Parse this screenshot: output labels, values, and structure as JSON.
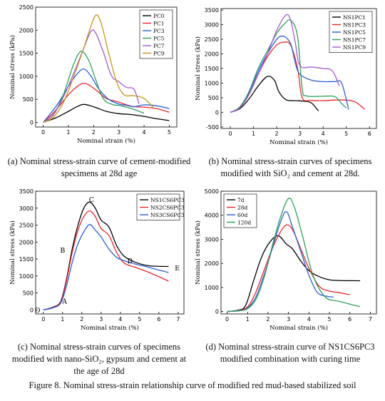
{
  "figure_caption": "Figure 8. Nominal stress-strain relationship curve of modified red mud-based stabilized soil",
  "captions": {
    "a": "(a) Nominal stress-strain curve of cement-modified specimens at 28d age",
    "b": "(b) Nominal stress-strain curves of specimens modified with SiO₂ and cement at 28d.",
    "c": "(c) Nominal stress-strain curves of specimens modified with nano-SiO₂, gypsum and cement at the age of 28d",
    "d": "(d) Nominal stress-strain curve of NS1CS6PC3 modified combination with curing time"
  },
  "chart_data": [
    {
      "id": "a",
      "type": "line",
      "xlabel": "Nominal strain (%)",
      "ylabel": "Nominal stress (kPa)",
      "xlim": [
        -0.3,
        5.3
      ],
      "ylim": [
        -100,
        2500
      ],
      "xticks": [
        0,
        1,
        2,
        3,
        4,
        5
      ],
      "yticks": [
        0,
        500,
        1000,
        1500,
        2000,
        2500
      ],
      "legend": "top-right",
      "series": [
        {
          "name": "PC0",
          "color": "#000000",
          "x": [
            0,
            0.5,
            1,
            1.3,
            1.6,
            2.0,
            2.5,
            3,
            3.5,
            4,
            4.5,
            5
          ],
          "y": [
            0,
            100,
            240,
            330,
            390,
            340,
            240,
            190,
            170,
            130,
            80,
            40
          ]
        },
        {
          "name": "PC1",
          "color": "#e8262b",
          "x": [
            0,
            0.3,
            0.6,
            1,
            1.4,
            1.7,
            2.1,
            2.5,
            3,
            3.5,
            4,
            4.5,
            5
          ],
          "y": [
            0,
            150,
            330,
            600,
            800,
            840,
            700,
            520,
            440,
            350,
            330,
            300,
            220
          ]
        },
        {
          "name": "PC3",
          "color": "#2c5fd4",
          "x": [
            0,
            0.3,
            0.6,
            1,
            1.3,
            1.6,
            1.9,
            2.2,
            2.6,
            3,
            3.3,
            3.6,
            4,
            4.5,
            5
          ],
          "y": [
            0,
            200,
            420,
            780,
            1020,
            1160,
            1000,
            730,
            500,
            400,
            370,
            340,
            380,
            360,
            300
          ]
        },
        {
          "name": "PC5",
          "color": "#2ca05a",
          "x": [
            0,
            0.4,
            0.8,
            1.2,
            1.5,
            1.8,
            2.1,
            2.4,
            2.8,
            3,
            3.5,
            4
          ],
          "y": [
            0,
            170,
            600,
            1250,
            1540,
            1350,
            900,
            500,
            380,
            370,
            300,
            200
          ]
        },
        {
          "name": "PC7",
          "color": "#a45ad2",
          "x": [
            0,
            0.4,
            0.8,
            1.2,
            1.6,
            1.9,
            2.1,
            2.4,
            2.7,
            3.0,
            3.3,
            3.6,
            3.8
          ],
          "y": [
            0,
            160,
            550,
            1050,
            1600,
            1980,
            1920,
            1500,
            1020,
            880,
            760,
            720,
            400
          ]
        },
        {
          "name": "PC9",
          "color": "#c4961c",
          "x": [
            0,
            0.4,
            0.8,
            1.2,
            1.6,
            1.9,
            2.1,
            2.3,
            2.6,
            2.9,
            3.2,
            3.6,
            4,
            4.4
          ],
          "y": [
            0,
            110,
            430,
            980,
            1600,
            2100,
            2330,
            2150,
            1500,
            900,
            600,
            580,
            520,
            300
          ]
        }
      ]
    },
    {
      "id": "b",
      "type": "line",
      "xlabel": "Nominal strain (%)",
      "ylabel": "Nominal stress (kPa)",
      "xlim": [
        -0.4,
        6.3
      ],
      "ylim": [
        -550,
        3550
      ],
      "xticks": [
        0,
        1,
        2,
        3,
        4,
        5,
        6
      ],
      "yticks": [
        -500,
        0,
        500,
        1000,
        1500,
        2000,
        2500,
        3000,
        3500
      ],
      "legend": "top-right",
      "series": [
        {
          "name": "NS1PC1",
          "color": "#000000",
          "x": [
            0,
            0.4,
            0.8,
            1.2,
            1.6,
            1.9,
            2.1,
            2.4,
            2.8,
            3.2,
            3.5,
            3.8
          ],
          "y": [
            0,
            120,
            450,
            900,
            1230,
            1100,
            700,
            430,
            400,
            380,
            320,
            50
          ]
        },
        {
          "name": "NS1PC3",
          "color": "#e8262b",
          "x": [
            0,
            0.4,
            0.8,
            1.2,
            1.6,
            2.0,
            2.3,
            2.6,
            2.9,
            3.1,
            3.5,
            4,
            4.5,
            5,
            5.4,
            5.8
          ],
          "y": [
            0,
            150,
            600,
            1300,
            1900,
            2300,
            2400,
            2300,
            1500,
            500,
            410,
            400,
            420,
            420,
            350,
            100
          ]
        },
        {
          "name": "NS1PC5",
          "color": "#2c5fd4",
          "x": [
            0,
            0.4,
            0.8,
            1.2,
            1.6,
            2.0,
            2.3,
            2.6,
            2.8,
            3.0,
            3.5,
            4,
            4.5,
            4.8,
            5.1
          ],
          "y": [
            0,
            150,
            650,
            1400,
            2000,
            2500,
            2600,
            2350,
            1700,
            1300,
            1100,
            1050,
            1050,
            1000,
            100
          ]
        },
        {
          "name": "NS1PC7",
          "color": "#2ca05a",
          "x": [
            0,
            0.4,
            0.8,
            1.2,
            1.6,
            2.0,
            2.3,
            2.6,
            2.9,
            3.1,
            3.3,
            4,
            4.5,
            4.8,
            5.0
          ],
          "y": [
            0,
            180,
            700,
            1500,
            2100,
            2700,
            3000,
            3150,
            2600,
            800,
            560,
            550,
            540,
            300,
            150
          ]
        },
        {
          "name": "NS1PC9",
          "color": "#a45ad2",
          "x": [
            0,
            0.4,
            0.8,
            1.2,
            1.6,
            2.0,
            2.4,
            2.6,
            2.8,
            3.0,
            3.5,
            4,
            4.4,
            4.7
          ],
          "y": [
            0,
            150,
            600,
            1300,
            2000,
            2800,
            3330,
            3150,
            2400,
            1600,
            1550,
            1500,
            1420,
            900
          ]
        }
      ]
    },
    {
      "id": "c",
      "type": "line",
      "xlabel": "Nominal strain (%)",
      "ylabel": "Nominal stress (kPa)",
      "xlim": [
        -0.4,
        7.3
      ],
      "ylim": [
        -120,
        3500
      ],
      "xticks": [
        0,
        1,
        2,
        3,
        4,
        5,
        6,
        7
      ],
      "yticks": [
        0,
        500,
        1000,
        1500,
        2000,
        2500,
        3000,
        3500
      ],
      "legend": "top-right",
      "annotations": [
        {
          "text": "O",
          "x": -0.3,
          "y": -10
        },
        {
          "text": "A",
          "x": 1.1,
          "y": 250
        },
        {
          "text": "B",
          "x": 1.0,
          "y": 1750
        },
        {
          "text": "C",
          "x": 2.5,
          "y": 3250
        },
        {
          "text": "D",
          "x": 4.5,
          "y": 1440
        },
        {
          "text": "E",
          "x": 6.95,
          "y": 1230
        }
      ],
      "series": [
        {
          "name": "NS1CS6PC3",
          "color": "#000000",
          "x": [
            0,
            0.5,
            0.9,
            1.2,
            1.5,
            1.8,
            2.1,
            2.4,
            2.7,
            3.0,
            3.4,
            3.8,
            4.2,
            4.8,
            5.5,
            6.5
          ],
          "y": [
            0,
            80,
            250,
            900,
            1800,
            2500,
            3000,
            3180,
            3000,
            2650,
            2450,
            1900,
            1580,
            1400,
            1300,
            1280
          ]
        },
        {
          "name": "NS2CS6PC3",
          "color": "#e8262b",
          "x": [
            0,
            0.5,
            0.9,
            1.2,
            1.5,
            1.8,
            2.1,
            2.4,
            2.7,
            3.0,
            3.4,
            3.8,
            4.2,
            4.8,
            5.5,
            6.5
          ],
          "y": [
            0,
            70,
            230,
            850,
            1700,
            2350,
            2750,
            2920,
            2750,
            2400,
            2200,
            1700,
            1380,
            1250,
            1100,
            850
          ]
        },
        {
          "name": "NS3CS6PC3",
          "color": "#2c5fd4",
          "x": [
            0,
            0.5,
            0.9,
            1.2,
            1.5,
            1.8,
            2.1,
            2.4,
            2.7,
            3.0,
            3.4,
            3.8,
            4.2,
            4.8,
            5.5,
            6.5
          ],
          "y": [
            0,
            60,
            200,
            700,
            1400,
            1950,
            2300,
            2520,
            2350,
            2150,
            1800,
            1550,
            1450,
            1350,
            1250,
            1100
          ]
        }
      ]
    },
    {
      "id": "d",
      "type": "line",
      "xlabel": "Nominal strain (%)",
      "ylabel": "Nominal stress (kPa)",
      "xlim": [
        -0.3,
        7.3
      ],
      "ylim": [
        -100,
        5000
      ],
      "xticks": [
        0,
        1,
        2,
        3,
        4,
        5,
        6,
        7
      ],
      "yticks": [
        0,
        1000,
        2000,
        3000,
        4000,
        5000
      ],
      "legend": "top-left",
      "series": [
        {
          "name": "7d",
          "color": "#000000",
          "x": [
            0,
            0.5,
            0.9,
            1.3,
            1.7,
            2.1,
            2.5,
            2.9,
            3.2,
            3.6,
            4.0,
            4.5,
            5.0,
            5.5,
            6.5
          ],
          "y": [
            0,
            50,
            250,
            1300,
            2300,
            2900,
            3150,
            2800,
            2600,
            2100,
            1700,
            1450,
            1320,
            1290,
            1280
          ]
        },
        {
          "name": "28d",
          "color": "#e8262b",
          "x": [
            0,
            0.5,
            1.0,
            1.4,
            1.8,
            2.2,
            2.6,
            2.9,
            3.2,
            3.6,
            4.0,
            4.5,
            5.0,
            5.5,
            6.0
          ],
          "y": [
            0,
            40,
            200,
            800,
            1700,
            2600,
            3300,
            3600,
            3400,
            2600,
            1800,
            1050,
            850,
            780,
            700
          ]
        },
        {
          "name": "60d",
          "color": "#2c5fd4",
          "x": [
            0,
            0.6,
            1.0,
            1.4,
            1.8,
            2.2,
            2.6,
            2.9,
            3.2,
            3.6,
            4.0,
            4.4,
            4.8,
            5.2
          ],
          "y": [
            0,
            40,
            150,
            600,
            1500,
            2600,
            3700,
            4150,
            3500,
            2500,
            1500,
            800,
            650,
            600
          ]
        },
        {
          "name": "120d",
          "color": "#2ca05a",
          "x": [
            0,
            0.6,
            1.0,
            1.4,
            1.8,
            2.2,
            2.6,
            3.0,
            3.3,
            3.7,
            4.2,
            4.8,
            5.5,
            6.5
          ],
          "y": [
            0,
            30,
            120,
            500,
            1400,
            2700,
            3900,
            4700,
            4300,
            3100,
            1500,
            600,
            420,
            200
          ]
        }
      ]
    }
  ]
}
